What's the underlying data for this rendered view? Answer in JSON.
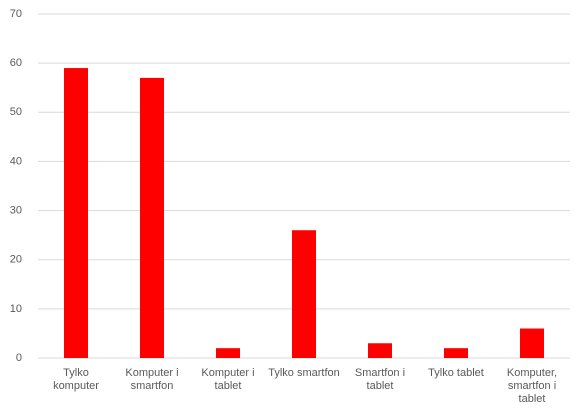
{
  "chart_data": {
    "type": "bar",
    "categories": [
      "Tylko komputer",
      "Komputer i smartfon",
      "Komputer i tablet",
      "Tylko smartfon",
      "Smartfon i tablet",
      "Tylko tablet",
      "Komputer, smartfon i tablet"
    ],
    "values": [
      59,
      57,
      2,
      26,
      3,
      2,
      6
    ],
    "color": "#ff0000",
    "ylim": [
      0,
      70
    ],
    "yticks": [
      0,
      10,
      20,
      30,
      40,
      50,
      60,
      70
    ],
    "grid": true
  }
}
